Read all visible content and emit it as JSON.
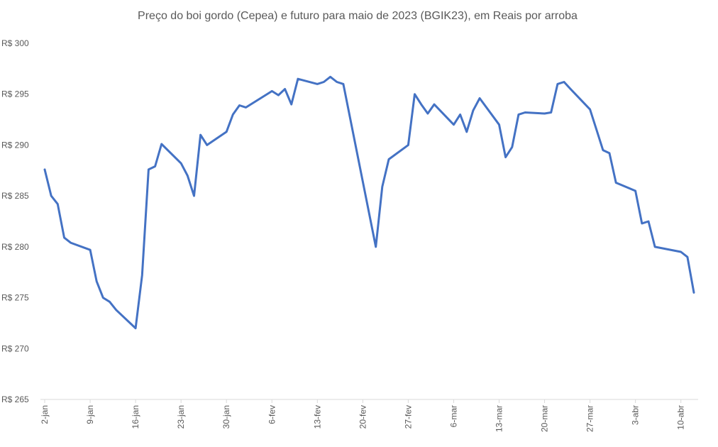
{
  "chart_data": {
    "type": "line",
    "title": "Preço do boi gordo (Cepea) e futuro para maio de 2023 (BGIK23), em Reais por arroba",
    "xlabel": "",
    "ylabel": "",
    "ylim": [
      265,
      300
    ],
    "y_ticks": [
      "R$ 265",
      "R$ 270",
      "R$ 275",
      "R$ 280",
      "R$ 285",
      "R$ 290",
      "R$ 295",
      "R$ 300"
    ],
    "x_tick_labels": [
      "2-jan",
      "9-jan",
      "16-jan",
      "23-jan",
      "30-jan",
      "6-fev",
      "13-fev",
      "20-fev",
      "27-fev",
      "6-mar",
      "13-mar",
      "20-mar",
      "27-mar",
      "3-abr",
      "10-abr"
    ],
    "x_start": "2023-01-02",
    "x_end": "2023-04-12",
    "grid": false,
    "legend": "none",
    "series_color": "#4472C4",
    "series": [
      {
        "name": "",
        "x": [
          "2023-01-02",
          "2023-01-03",
          "2023-01-04",
          "2023-01-05",
          "2023-01-06",
          "2023-01-09",
          "2023-01-10",
          "2023-01-11",
          "2023-01-12",
          "2023-01-13",
          "2023-01-16",
          "2023-01-17",
          "2023-01-18",
          "2023-01-19",
          "2023-01-20",
          "2023-01-23",
          "2023-01-24",
          "2023-01-25",
          "2023-01-26",
          "2023-01-27",
          "2023-01-30",
          "2023-01-31",
          "2023-02-01",
          "2023-02-02",
          "2023-02-03",
          "2023-02-06",
          "2023-02-07",
          "2023-02-08",
          "2023-02-09",
          "2023-02-10",
          "2023-02-13",
          "2023-02-14",
          "2023-02-15",
          "2023-02-16",
          "2023-02-17",
          "2023-02-22",
          "2023-02-23",
          "2023-02-24",
          "2023-02-27",
          "2023-02-28",
          "2023-03-01",
          "2023-03-02",
          "2023-03-03",
          "2023-03-06",
          "2023-03-07",
          "2023-03-08",
          "2023-03-09",
          "2023-03-10",
          "2023-03-13",
          "2023-03-14",
          "2023-03-15",
          "2023-03-16",
          "2023-03-17",
          "2023-03-20",
          "2023-03-21",
          "2023-03-22",
          "2023-03-23",
          "2023-03-24",
          "2023-03-27",
          "2023-03-28",
          "2023-03-29",
          "2023-03-30",
          "2023-03-31",
          "2023-04-03",
          "2023-04-04",
          "2023-04-05",
          "2023-04-06",
          "2023-04-10",
          "2023-04-11",
          "2023-04-12"
        ],
        "values": [
          287.6,
          285.0,
          284.2,
          280.9,
          280.4,
          279.7,
          276.6,
          275.0,
          274.6,
          273.8,
          272.0,
          277.2,
          287.6,
          287.9,
          290.1,
          288.2,
          287.0,
          285.0,
          291.0,
          290.0,
          291.3,
          293.0,
          293.9,
          293.7,
          294.1,
          295.3,
          294.9,
          295.5,
          294.0,
          296.5,
          296.0,
          296.2,
          296.7,
          296.2,
          296.0,
          280.0,
          285.9,
          288.6,
          290.0,
          295.0,
          294.0,
          293.1,
          294.0,
          292.0,
          293.0,
          291.3,
          293.4,
          294.6,
          292.0,
          288.8,
          289.8,
          293.0,
          293.2,
          293.1,
          293.2,
          296.0,
          296.2,
          295.5,
          293.5,
          291.5,
          289.5,
          289.2,
          286.3,
          285.5,
          282.3,
          282.5,
          280.0,
          279.5,
          279.0,
          275.5
        ]
      }
    ]
  }
}
